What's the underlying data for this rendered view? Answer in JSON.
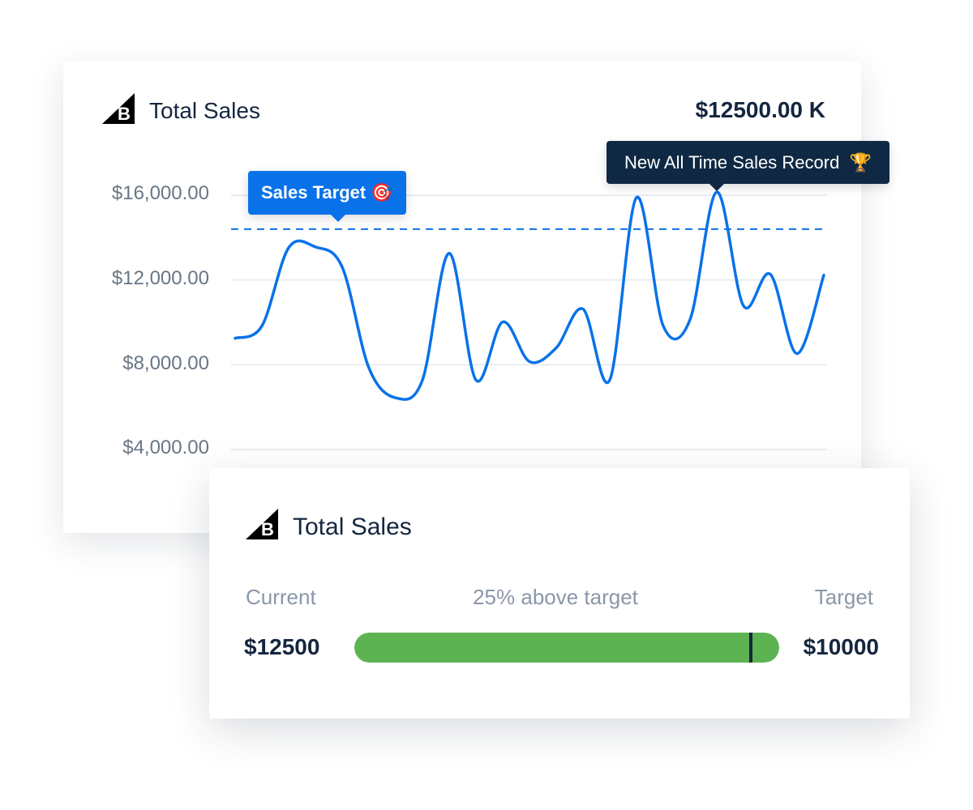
{
  "chart_card": {
    "title": "Total Sales",
    "total": "$12500.00 K",
    "logo_icon": "bigcommerce-logo",
    "target_tooltip": "Sales Target",
    "target_icon": "🎯",
    "record_tooltip": "New All Time Sales Record",
    "record_icon": "🏆"
  },
  "chart_data": {
    "type": "line",
    "title": "",
    "xlabel": "",
    "ylabel": "",
    "ylim": [
      4000,
      16000
    ],
    "yticks": [
      16000,
      12000,
      8000,
      4000
    ],
    "ytick_labels": [
      "$16,000.00",
      "$12,000.00",
      "$8,000.00",
      "$4,000.00"
    ],
    "grid": true,
    "target": 14400,
    "values": [
      9250,
      9830,
      13520,
      13560,
      12610,
      7850,
      6440,
      7280,
      13260,
      7280,
      10020,
      8150,
      8800,
      10630,
      7280,
      15890,
      9830,
      10130,
      16150,
      10780,
      12270,
      8530,
      12230
    ],
    "record_index": 18,
    "line_color": "#0a72e8",
    "grid_color": "#e9ecf0"
  },
  "progress_card": {
    "title": "Total Sales",
    "current_label": "Current",
    "status": "25% above target",
    "target_label": "Target",
    "current_value": "$12500",
    "target_value": "$10000",
    "fill_percent": 100,
    "target_marker_percent": 93,
    "fill_color": "#5db352"
  }
}
